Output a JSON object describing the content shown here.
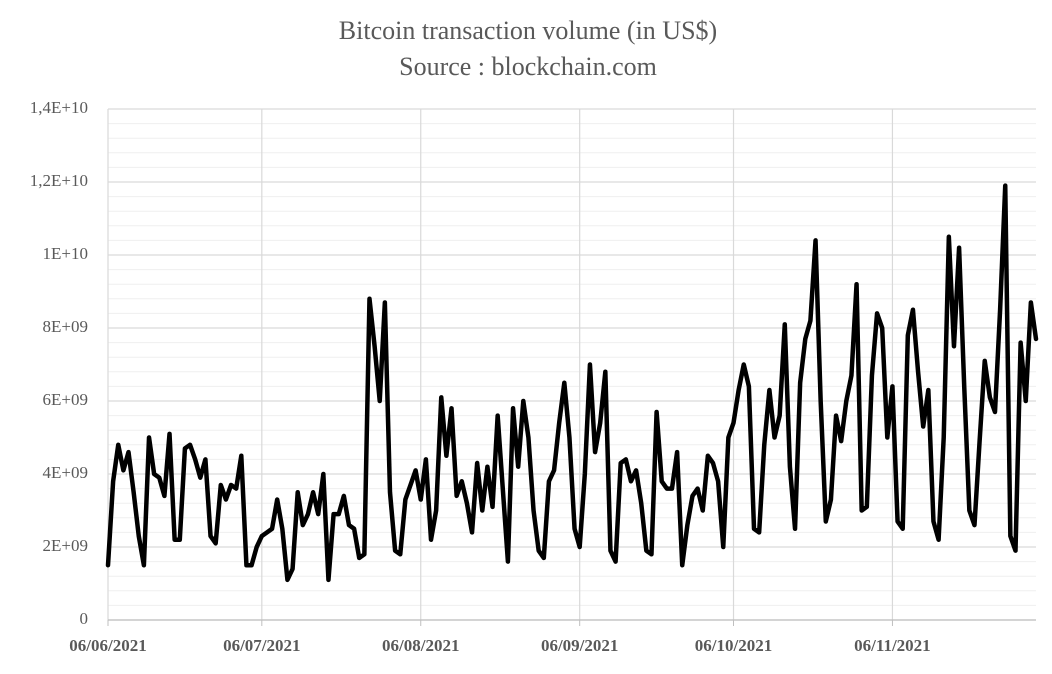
{
  "chart_data": {
    "type": "line",
    "title": "Bitcoin transaction volume (in US$)",
    "subtitle": "Source : blockchain.com",
    "color": "#000000",
    "grid": true,
    "x": [
      "2021-06-06",
      "2021-06-07",
      "2021-06-08",
      "2021-06-09",
      "2021-06-10",
      "2021-06-11",
      "2021-06-12",
      "2021-06-13",
      "2021-06-14",
      "2021-06-15",
      "2021-06-16",
      "2021-06-17",
      "2021-06-18",
      "2021-06-19",
      "2021-06-20",
      "2021-06-21",
      "2021-06-22",
      "2021-06-23",
      "2021-06-24",
      "2021-06-25",
      "2021-06-26",
      "2021-06-27",
      "2021-06-28",
      "2021-06-29",
      "2021-06-30",
      "2021-07-01",
      "2021-07-02",
      "2021-07-03",
      "2021-07-04",
      "2021-07-05",
      "2021-07-06",
      "2021-07-07",
      "2021-07-08",
      "2021-07-09",
      "2021-07-10",
      "2021-07-11",
      "2021-07-12",
      "2021-07-13",
      "2021-07-14",
      "2021-07-15",
      "2021-07-16",
      "2021-07-17",
      "2021-07-18",
      "2021-07-19",
      "2021-07-20",
      "2021-07-21",
      "2021-07-22",
      "2021-07-23",
      "2021-07-24",
      "2021-07-25",
      "2021-07-26",
      "2021-07-27",
      "2021-07-28",
      "2021-07-29",
      "2021-07-30",
      "2021-07-31",
      "2021-08-01",
      "2021-08-02",
      "2021-08-03",
      "2021-08-04",
      "2021-08-05",
      "2021-08-06",
      "2021-08-07",
      "2021-08-08",
      "2021-08-09",
      "2021-08-10",
      "2021-08-11",
      "2021-08-12",
      "2021-08-13",
      "2021-08-14",
      "2021-08-15",
      "2021-08-16",
      "2021-08-17",
      "2021-08-18",
      "2021-08-19",
      "2021-08-20",
      "2021-08-21",
      "2021-08-22",
      "2021-08-23",
      "2021-08-24",
      "2021-08-25",
      "2021-08-26",
      "2021-08-27",
      "2021-08-28",
      "2021-08-29",
      "2021-08-30",
      "2021-08-31",
      "2021-09-01",
      "2021-09-02",
      "2021-09-03",
      "2021-09-04",
      "2021-09-05",
      "2021-09-06",
      "2021-09-07",
      "2021-09-08",
      "2021-09-09",
      "2021-09-10",
      "2021-09-11",
      "2021-09-12",
      "2021-09-13",
      "2021-09-14",
      "2021-09-15",
      "2021-09-16",
      "2021-09-17",
      "2021-09-18",
      "2021-09-19",
      "2021-09-20",
      "2021-09-21",
      "2021-09-22",
      "2021-09-23",
      "2021-09-24",
      "2021-09-25",
      "2021-09-26",
      "2021-09-27",
      "2021-09-28",
      "2021-09-29",
      "2021-09-30",
      "2021-10-01",
      "2021-10-02",
      "2021-10-03",
      "2021-10-04",
      "2021-10-05",
      "2021-10-06",
      "2021-10-07",
      "2021-10-08",
      "2021-10-09",
      "2021-10-10",
      "2021-10-11",
      "2021-10-12",
      "2021-10-13",
      "2021-10-14",
      "2021-10-15",
      "2021-10-16",
      "2021-10-17",
      "2021-10-18",
      "2021-10-19",
      "2021-10-20",
      "2021-10-21",
      "2021-10-22",
      "2021-10-23",
      "2021-10-24",
      "2021-10-25",
      "2021-10-26",
      "2021-10-27",
      "2021-10-28",
      "2021-10-29",
      "2021-10-30",
      "2021-10-31",
      "2021-11-01",
      "2021-11-02",
      "2021-11-03",
      "2021-11-04",
      "2021-11-05",
      "2021-11-06",
      "2021-11-07",
      "2021-11-08",
      "2021-11-09",
      "2021-11-10",
      "2021-11-11",
      "2021-11-12",
      "2021-11-13",
      "2021-11-14",
      "2021-11-15",
      "2021-11-16",
      "2021-11-17",
      "2021-11-18",
      "2021-11-19",
      "2021-11-20",
      "2021-11-21",
      "2021-11-22",
      "2021-11-23",
      "2021-11-24",
      "2021-11-25",
      "2021-11-26",
      "2021-11-27",
      "2021-11-28",
      "2021-11-29",
      "2021-11-30",
      "2021-12-01",
      "2021-12-02",
      "2021-12-03",
      "2021-12-04"
    ],
    "values": [
      1500000000.0,
      3800000000.0,
      4800000000.0,
      4100000000.0,
      4600000000.0,
      3500000000.0,
      2300000000.0,
      1500000000.0,
      5000000000.0,
      4000000000.0,
      3900000000.0,
      3400000000.0,
      5100000000.0,
      2200000000.0,
      2200000000.0,
      4700000000.0,
      4800000000.0,
      4400000000.0,
      3900000000.0,
      4400000000.0,
      2300000000.0,
      2100000000.0,
      3700000000.0,
      3300000000.0,
      3700000000.0,
      3600000000.0,
      4500000000.0,
      1500000000.0,
      1500000000.0,
      2000000000.0,
      2300000000.0,
      2400000000.0,
      2500000000.0,
      3300000000.0,
      2500000000.0,
      1100000000.0,
      1400000000.0,
      3500000000.0,
      2600000000.0,
      2900000000.0,
      3500000000.0,
      2900000000.0,
      4000000000.0,
      1100000000.0,
      2900000000.0,
      2900000000.0,
      3400000000.0,
      2600000000.0,
      2500000000.0,
      1700000000.0,
      1800000000.0,
      8800000000.0,
      7500000000.0,
      6000000000.0,
      8700000000.0,
      3500000000.0,
      1900000000.0,
      1800000000.0,
      3300000000.0,
      3700000000.0,
      4100000000.0,
      3300000000.0,
      4400000000.0,
      2200000000.0,
      3000000000.0,
      6100000000.0,
      4500000000.0,
      5800000000.0,
      3400000000.0,
      3800000000.0,
      3200000000.0,
      2400000000.0,
      4300000000.0,
      3000000000.0,
      4200000000.0,
      3100000000.0,
      5600000000.0,
      3600000000.0,
      1600000000.0,
      5800000000.0,
      4200000000.0,
      6000000000.0,
      5000000000.0,
      3000000000.0,
      1900000000.0,
      1700000000.0,
      3800000000.0,
      4100000000.0,
      5400000000.0,
      6500000000.0,
      5000000000.0,
      2500000000.0,
      2000000000.0,
      4000000000.0,
      7000000000.0,
      4600000000.0,
      5400000000.0,
      6800000000.0,
      1900000000.0,
      1600000000.0,
      4300000000.0,
      4400000000.0,
      3800000000.0,
      4100000000.0,
      3200000000.0,
      1900000000.0,
      1800000000.0,
      5700000000.0,
      3800000000.0,
      3600000000.0,
      3600000000.0,
      4600000000.0,
      1500000000.0,
      2600000000.0,
      3400000000.0,
      3600000000.0,
      3000000000.0,
      4500000000.0,
      4300000000.0,
      3800000000.0,
      2000000000.0,
      5000000000.0,
      5400000000.0,
      6300000000.0,
      7000000000.0,
      6400000000.0,
      2500000000.0,
      2400000000.0,
      4800000000.0,
      6300000000.0,
      5000000000.0,
      5600000000.0,
      8100000000.0,
      4200000000.0,
      2500000000.0,
      6500000000.0,
      7700000000.0,
      8200000000.0,
      10400000000.0,
      6000000000.0,
      2700000000.0,
      3300000000.0,
      5600000000.0,
      4900000000.0,
      6000000000.0,
      6700000000.0,
      9200000000.0,
      3000000000.0,
      3100000000.0,
      6700000000.0,
      8400000000.0,
      8000000000.0,
      5000000000.0,
      6400000000.0,
      2700000000.0,
      2500000000.0,
      7800000000.0,
      8500000000.0,
      6800000000.0,
      5300000000.0,
      6300000000.0,
      2700000000.0,
      2200000000.0,
      5000000000.0,
      10500000000.0,
      7500000000.0,
      10200000000.0,
      6400000000.0,
      3000000000.0,
      2600000000.0,
      4900000000.0,
      7100000000.0,
      6100000000.0,
      5700000000.0,
      8500000000.0,
      11900000000.0,
      2300000000.0,
      1900000000.0,
      7600000000.0,
      6000000000.0,
      8700000000.0,
      7700000000.0
    ],
    "xlim": [
      "2021-06-06",
      "2021-12-04"
    ],
    "xticks": [
      {
        "value": "2021-06-06",
        "label": "06/06/2021"
      },
      {
        "value": "2021-07-06",
        "label": "06/07/2021"
      },
      {
        "value": "2021-08-06",
        "label": "06/08/2021"
      },
      {
        "value": "2021-09-06",
        "label": "06/09/2021"
      },
      {
        "value": "2021-10-06",
        "label": "06/10/2021"
      },
      {
        "value": "2021-11-06",
        "label": "06/11/2021"
      }
    ],
    "ylim": [
      0,
      14000000000
    ],
    "yticks": [
      0,
      {
        "value": 2000000000,
        "label": "2E+09"
      },
      {
        "value": 4000000000,
        "label": "4E+09"
      },
      {
        "value": 6000000000,
        "label": "6E+09"
      },
      {
        "value": 8000000000,
        "label": "8E+09"
      },
      {
        "value": 10000000000,
        "label": "1E+10"
      },
      {
        "value": 12000000000,
        "label": "1,2E+10"
      },
      {
        "value": 14000000000,
        "label": "1,4E+10"
      }
    ],
    "minor_yticks": [
      400000000,
      800000000,
      1200000000,
      1600000000,
      2400000000,
      2800000000,
      3200000000,
      3600000000,
      4400000000,
      4800000000,
      5200000000,
      5600000000,
      6400000000,
      6800000000,
      7200000000,
      7600000000,
      8400000000,
      8800000000,
      9200000000,
      9600000000,
      10400000000,
      10800000000,
      11200000000,
      11600000000,
      12400000000,
      12800000000,
      13200000000,
      13600000000
    ]
  }
}
